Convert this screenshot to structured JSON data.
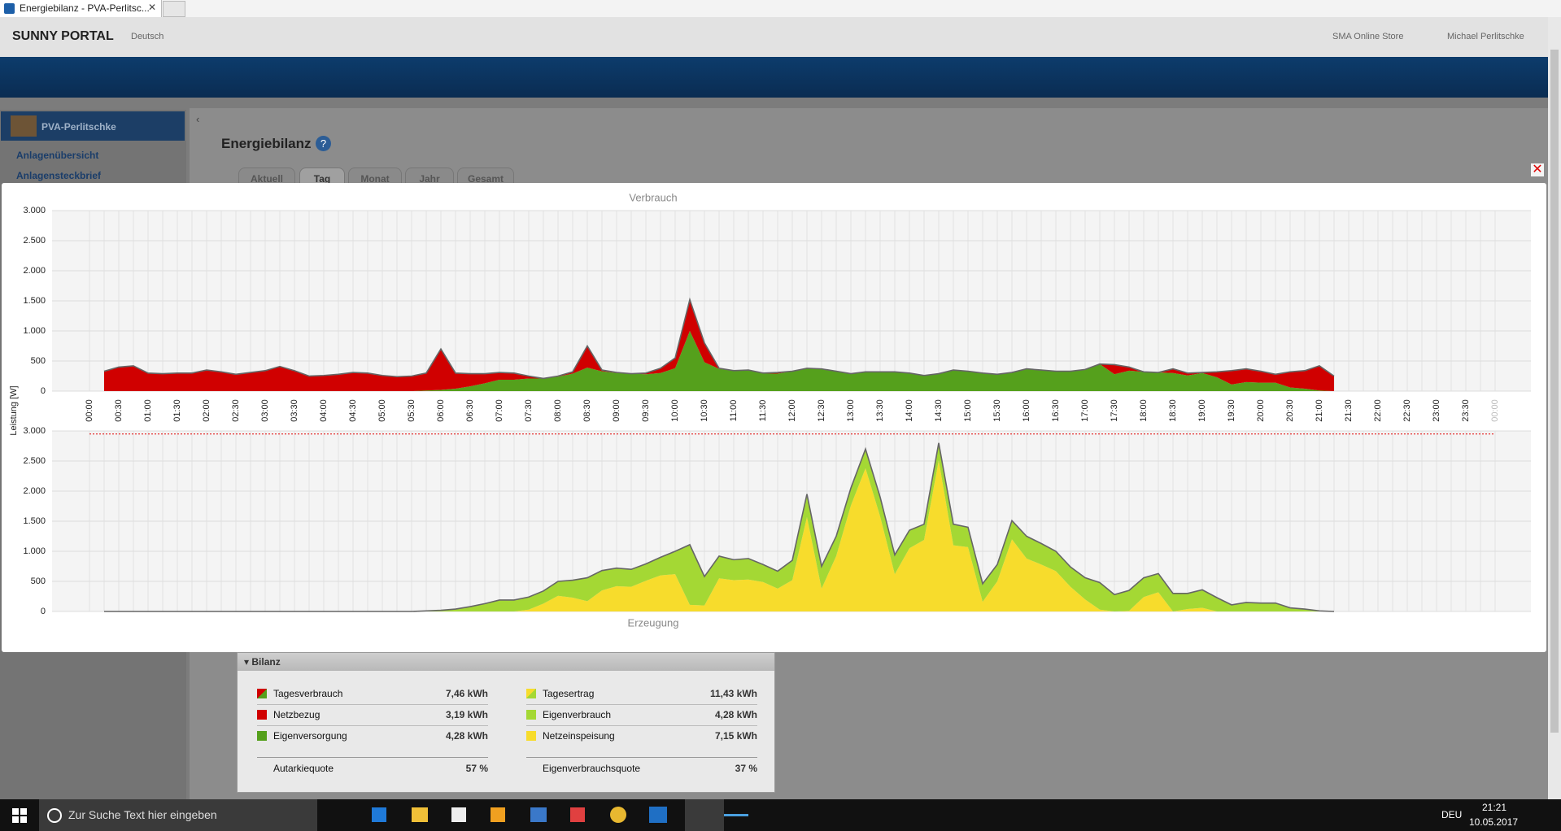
{
  "browser": {
    "tab_title": "Energiebilanz - PVA-Perlitsc..."
  },
  "header": {
    "logo": "SUNNY PORTAL",
    "language": "Deutsch",
    "store": "SMA Online Store",
    "user": "Michael Perlitschke"
  },
  "sidebar": {
    "plant": "PVA-Perlitschke",
    "items": [
      "Anlagenübersicht",
      "Anlagensteckbrief"
    ]
  },
  "page": {
    "title": "Energiebilanz",
    "tabs": [
      "Aktuell",
      "Tag",
      "Monat",
      "Jahr",
      "Gesamt"
    ]
  },
  "chart_data": {
    "type": "area",
    "stacked": true,
    "grid": true,
    "ylabel": "Leistung [W]",
    "categories": [
      "00:00",
      null,
      "00:30",
      null,
      "01:00",
      null,
      "01:30",
      null,
      "02:00",
      null,
      "02:30",
      null,
      "03:00",
      null,
      "03:30",
      null,
      "04:00",
      null,
      "04:30",
      null,
      "05:00",
      null,
      "05:30",
      null,
      "06:00",
      null,
      "06:30",
      null,
      "07:00",
      null,
      "07:30",
      null,
      "08:00",
      null,
      "08:30",
      null,
      "09:00",
      null,
      "09:30",
      null,
      "10:00",
      null,
      "10:30",
      null,
      "11:00",
      null,
      "11:30",
      null,
      "12:00",
      null,
      "12:30",
      null,
      "13:00",
      null,
      "13:30",
      null,
      "14:00",
      null,
      "14:30",
      null,
      "15:00",
      null,
      "15:30",
      null,
      "16:00",
      null,
      "16:30",
      null,
      "17:00",
      null,
      "17:30",
      null,
      "18:00",
      null,
      "18:30",
      null,
      "19:00",
      null,
      "19:30",
      null,
      "20:00",
      null,
      "20:30",
      null,
      "21:00",
      null,
      "21:30",
      null,
      "22:00",
      null,
      "22:30",
      null,
      "23:00",
      null,
      "23:30",
      null,
      "00:00"
    ],
    "panels": [
      {
        "title": "Verbrauch",
        "ylim": [
          0,
          3000
        ],
        "yticks": [
          0,
          500,
          {
            "value": 1000,
            "label": "1.000"
          },
          {
            "value": 1500,
            "label": "1.500"
          },
          {
            "value": 2000,
            "label": "2.000"
          },
          {
            "value": 2500,
            "label": "2.500"
          },
          {
            "value": 3000,
            "label": "3.000"
          }
        ],
        "series": [
          {
            "color": "#55a01c",
            "values": [
              null,
              0,
              0,
              0,
              0,
              0,
              0,
              0,
              0,
              0,
              0,
              0,
              0,
              0,
              0,
              0,
              0,
              0,
              0,
              0,
              0,
              0,
              0,
              10,
              20,
              40,
              80,
              130,
              190,
              190,
              210,
              210,
              240,
              290,
              390,
              330,
              300,
              290,
              280,
              300,
              380,
              1000,
              480,
              370,
              340,
              350,
              290,
              290,
              330,
              380,
              370,
              330,
              290,
              320,
              320,
              320,
              300,
              260,
              290,
              350,
              330,
              300,
              280,
              310,
              370,
              350,
              330,
              330,
              360,
              450,
              280,
              340,
              320,
              310,
              300,
              260,
              300,
              230,
              110,
              150,
              140,
              140,
              60,
              40,
              10,
              0,
              null,
              null,
              null,
              null,
              null,
              null,
              null,
              null,
              null,
              null,
              null
            ]
          },
          {
            "color": "#d00000",
            "values": [
              null,
              330,
              400,
              420,
              300,
              290,
              300,
              300,
              350,
              320,
              280,
              310,
              340,
              410,
              340,
              250,
              260,
              280,
              310,
              300,
              260,
              240,
              250,
              290,
              680,
              260,
              210,
              160,
              120,
              110,
              40,
              0,
              10,
              30,
              360,
              20,
              10,
              0,
              20,
              80,
              170,
              520,
              320,
              10,
              0,
              0,
              10,
              20,
              0,
              0,
              0,
              0,
              0,
              0,
              0,
              0,
              0,
              0,
              0,
              0,
              0,
              0,
              0,
              0,
              0,
              0,
              0,
              0,
              0,
              0,
              160,
              60,
              0,
              0,
              70,
              40,
              10,
              90,
              230,
              220,
              190,
              140,
              260,
              300,
              410,
              250,
              null,
              null,
              null,
              null,
              null,
              null,
              null,
              null,
              null,
              null,
              null
            ]
          }
        ]
      },
      {
        "title": "Erzeugung",
        "ylim": [
          0,
          3000
        ],
        "yticks": [
          0,
          500,
          {
            "value": 1000,
            "label": "1.000"
          },
          {
            "value": 1500,
            "label": "1.500"
          },
          {
            "value": 2000,
            "label": "2.000"
          },
          {
            "value": 2500,
            "label": "2.500"
          },
          {
            "value": 3000,
            "label": "3.000"
          }
        ],
        "reference_line": {
          "value": 2950,
          "color": "#e00000"
        },
        "series": [
          {
            "color": "#f7dc2c",
            "values": [
              null,
              0,
              0,
              0,
              0,
              0,
              0,
              0,
              0,
              0,
              0,
              0,
              0,
              0,
              0,
              0,
              0,
              0,
              0,
              0,
              0,
              0,
              0,
              0,
              0,
              0,
              0,
              0,
              0,
              0,
              30,
              130,
              260,
              230,
              170,
              350,
              420,
              410,
              510,
              600,
              620,
              110,
              100,
              550,
              520,
              530,
              490,
              380,
              520,
              1570,
              380,
              920,
              1760,
              2380,
              1580,
              620,
              1050,
              1190,
              2510,
              1100,
              1070,
              160,
              500,
              1200,
              880,
              780,
              670,
              410,
              200,
              30,
              0,
              10,
              240,
              320,
              0,
              40,
              60,
              0,
              0,
              0,
              0,
              0,
              0,
              0,
              0,
              0,
              null,
              null,
              null,
              null,
              null,
              null,
              null,
              null,
              null,
              null,
              null
            ]
          },
          {
            "color": "#a4d834",
            "values": [
              null,
              0,
              0,
              0,
              0,
              0,
              0,
              0,
              0,
              0,
              0,
              0,
              0,
              0,
              0,
              0,
              0,
              0,
              0,
              0,
              0,
              0,
              0,
              10,
              20,
              40,
              80,
              130,
              190,
              190,
              210,
              210,
              240,
              290,
              390,
              330,
              300,
              290,
              280,
              300,
              380,
              1000,
              480,
              370,
              340,
              350,
              290,
              290,
              330,
              380,
              370,
              330,
              290,
              320,
              320,
              320,
              300,
              260,
              290,
              350,
              330,
              300,
              280,
              310,
              370,
              350,
              330,
              330,
              360,
              450,
              280,
              340,
              320,
              310,
              300,
              260,
              300,
              230,
              110,
              150,
              140,
              140,
              60,
              40,
              10,
              0,
              null,
              null,
              null,
              null,
              null,
              null,
              null,
              null,
              null,
              null,
              null
            ]
          }
        ]
      }
    ]
  },
  "bilanz": {
    "title": "Bilanz",
    "left": [
      [
        "Tagesverbrauch",
        "7,46 kWh"
      ],
      [
        "Netzbezug",
        "3,19 kWh"
      ],
      [
        "Eigenversorgung",
        "4,28 kWh"
      ]
    ],
    "left_quota": [
      "Autarkiequote",
      "57 %"
    ],
    "right": [
      [
        "Tagesertrag",
        "11,43 kWh"
      ],
      [
        "Eigenverbrauch",
        "4,28 kWh"
      ],
      [
        "Netzeinspeisung",
        "7,15 kWh"
      ]
    ],
    "right_quota": [
      "Eigenverbrauchsquote",
      "37 %"
    ]
  },
  "taskbar": {
    "search": "Zur Suche Text hier eingeben",
    "language": "DEU",
    "time": "21:21",
    "date": "10.05.2017"
  }
}
